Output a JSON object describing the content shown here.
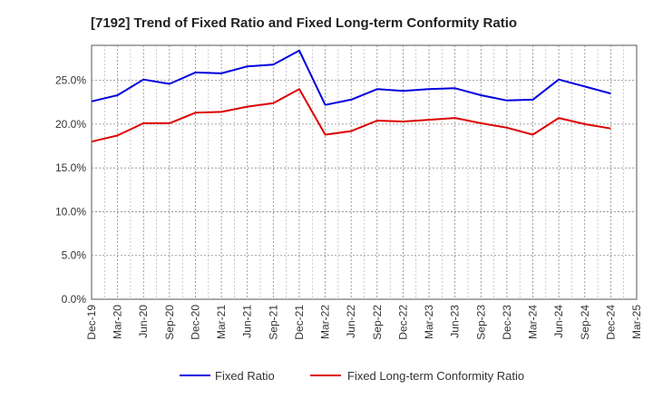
{
  "chart_data": {
    "type": "line",
    "title": "[7192]  Trend of Fixed Ratio and Fixed Long-term Conformity Ratio",
    "xlabel": "",
    "ylabel": "",
    "ylim": [
      0,
      0.29
    ],
    "yticks": [
      0,
      0.05,
      0.1,
      0.15,
      0.2,
      0.25
    ],
    "ytick_labels": [
      "0.0%",
      "5.0%",
      "10.0%",
      "15.0%",
      "20.0%",
      "25.0%"
    ],
    "x": [
      "Dec-19",
      "Mar-20",
      "Jun-20",
      "Sep-20",
      "Dec-20",
      "Mar-21",
      "Jun-21",
      "Sep-21",
      "Dec-21",
      "Mar-22",
      "Jun-22",
      "Sep-22",
      "Dec-22",
      "Mar-23",
      "Jun-23",
      "Sep-23",
      "Dec-23",
      "Mar-24",
      "Jun-24",
      "Sep-24",
      "Dec-24",
      "Mar-25"
    ],
    "grid": true,
    "legend_position": "bottom",
    "series": [
      {
        "name": "Fixed Ratio",
        "color": "#0000dd",
        "values": [
          0.226,
          0.233,
          0.251,
          0.246,
          0.259,
          0.258,
          0.266,
          0.268,
          0.284,
          0.222,
          0.228,
          0.24,
          0.238,
          0.24,
          0.241,
          0.233,
          0.227,
          0.228,
          0.251,
          0.243,
          0.235,
          null
        ]
      },
      {
        "name": "Fixed Long-term Conformity Ratio",
        "color": "#dd0000",
        "values": [
          0.18,
          0.187,
          0.201,
          0.201,
          0.213,
          0.214,
          0.22,
          0.224,
          0.24,
          0.188,
          0.192,
          0.204,
          0.203,
          0.205,
          0.207,
          0.201,
          0.196,
          0.188,
          0.207,
          0.2,
          0.195,
          null
        ]
      }
    ]
  }
}
